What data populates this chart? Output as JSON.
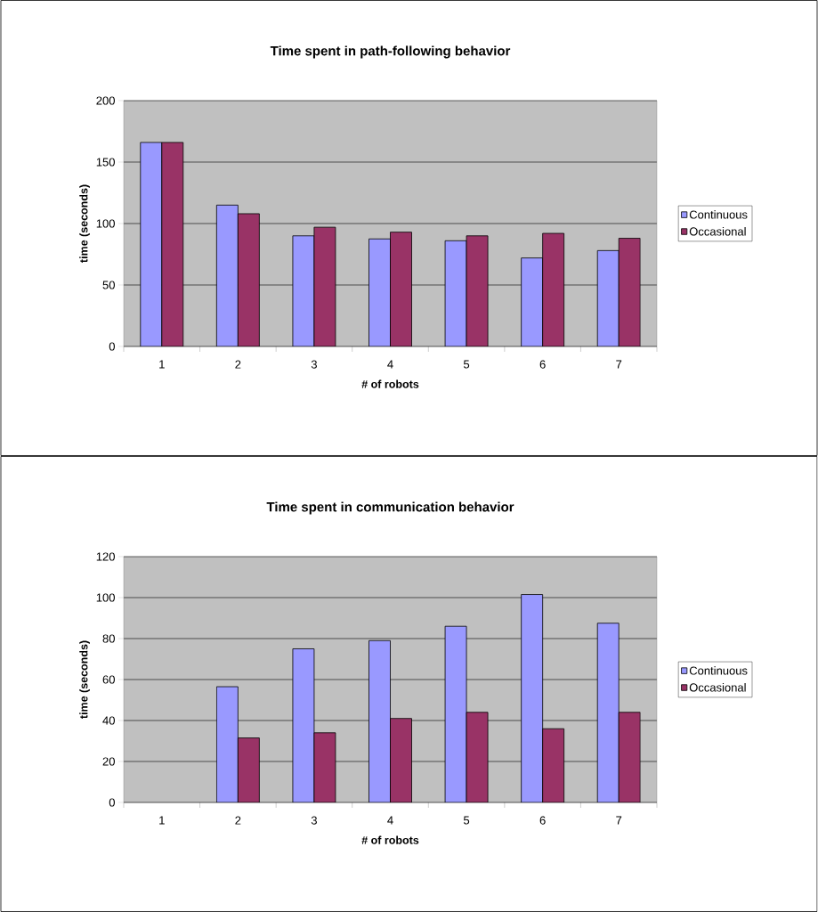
{
  "chart_data": [
    {
      "type": "bar",
      "title": "Time spent in path-following behavior",
      "xlabel": "# of robots",
      "ylabel": "time (seconds)",
      "categories": [
        "1",
        "2",
        "3",
        "4",
        "5",
        "6",
        "7"
      ],
      "series": [
        {
          "name": "Continuous",
          "color": "#9999ff",
          "values": [
            166,
            115,
            90,
            87.5,
            86,
            72,
            78
          ]
        },
        {
          "name": "Occasional",
          "color": "#993366",
          "values": [
            166,
            108,
            97,
            93,
            90,
            92,
            88
          ]
        }
      ],
      "ylim": [
        0,
        200
      ],
      "yticks": [
        0,
        50,
        100,
        150,
        200
      ],
      "grid": "y",
      "legend": "right"
    },
    {
      "type": "bar",
      "title": "Time spent in communication behavior",
      "xlabel": "# of robots",
      "ylabel": "time (seconds)",
      "categories": [
        "1",
        "2",
        "3",
        "4",
        "5",
        "6",
        "7"
      ],
      "series": [
        {
          "name": "Continuous",
          "color": "#9999ff",
          "values": [
            null,
            56.5,
            75,
            79,
            86,
            101.5,
            87.5
          ]
        },
        {
          "name": "Occasional",
          "color": "#993366",
          "values": [
            null,
            31.5,
            34,
            41,
            44,
            36,
            44
          ]
        }
      ],
      "ylim": [
        0,
        120
      ],
      "yticks": [
        0,
        20,
        40,
        60,
        80,
        100,
        120
      ],
      "grid": "y",
      "legend": "right"
    }
  ]
}
